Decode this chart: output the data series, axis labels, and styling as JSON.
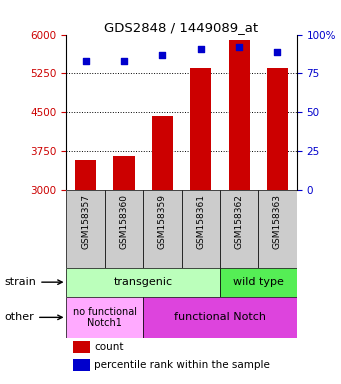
{
  "title": "GDS2848 / 1449089_at",
  "categories": [
    "GSM158357",
    "GSM158360",
    "GSM158359",
    "GSM158361",
    "GSM158362",
    "GSM158363"
  ],
  "bar_values": [
    3580,
    3650,
    4420,
    5350,
    5900,
    5350
  ],
  "percentile_values": [
    83,
    83,
    87,
    91,
    92,
    89
  ],
  "ylim_left": [
    3000,
    6000
  ],
  "ylim_right": [
    0,
    100
  ],
  "yticks_left": [
    3000,
    3750,
    4500,
    5250,
    6000
  ],
  "yticks_right": [
    0,
    25,
    50,
    75,
    100
  ],
  "bar_color": "#cc0000",
  "percentile_color": "#0000cc",
  "bar_width": 0.55,
  "transgenic_color": "#bbffbb",
  "wildtype_color": "#55ee55",
  "no_functional_color": "#ffaaff",
  "functional_color": "#dd44dd",
  "xlabel_box_color": "#cccccc",
  "background_color": "#ffffff"
}
